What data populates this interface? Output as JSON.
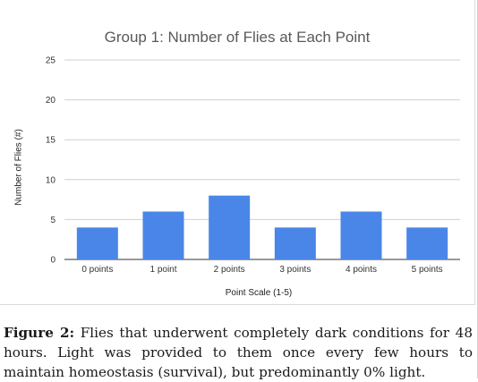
{
  "chart_data": {
    "type": "bar",
    "title": "Group 1: Number of Flies at Each Point",
    "xlabel": "Point Scale (1-5)",
    "ylabel": "Number of Flies (#)",
    "categories": [
      "0 points",
      "1 point",
      "2 points",
      "3 points",
      "4 points",
      "5 points"
    ],
    "values": [
      4,
      6,
      8,
      4,
      6,
      4
    ],
    "ylim": [
      0,
      25
    ],
    "yticks": [
      "0",
      "5",
      "10",
      "15",
      "20",
      "25"
    ],
    "grid": true,
    "legend": "none",
    "bar_color": "#4a86e8"
  },
  "caption": {
    "label": "Figure 2:",
    "text": " Flies that underwent completely dark conditions for 48 hours. Light was provided to them once every few hours to maintain homeostasis (survival), but predominantly 0% light."
  }
}
